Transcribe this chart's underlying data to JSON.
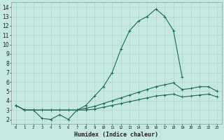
{
  "xlabel": "Humidex (Indice chaleur)",
  "background_color": "#c5e8e0",
  "grid_color": "#afd4cc",
  "line_color": "#1a6b5a",
  "xlim": [
    -0.5,
    23.5
  ],
  "ylim": [
    1.5,
    14.5
  ],
  "xticks": [
    0,
    1,
    2,
    3,
    4,
    5,
    6,
    7,
    8,
    9,
    10,
    11,
    12,
    13,
    14,
    15,
    16,
    17,
    18,
    19,
    20,
    21,
    22,
    23
  ],
  "yticks": [
    2,
    3,
    4,
    5,
    6,
    7,
    8,
    9,
    10,
    11,
    12,
    13,
    14
  ],
  "line1_x": [
    0,
    1,
    2,
    3,
    4,
    5,
    6,
    7,
    8,
    9,
    10,
    11,
    12,
    13,
    14,
    15,
    16,
    17,
    18,
    19
  ],
  "line1_y": [
    3.5,
    3.0,
    3.0,
    2.1,
    2.0,
    2.5,
    2.0,
    3.0,
    3.5,
    4.5,
    5.5,
    7.0,
    9.5,
    11.5,
    12.5,
    13.0,
    13.8,
    13.0,
    11.5,
    6.5
  ],
  "line2_x": [
    0,
    1,
    2,
    3,
    4,
    5,
    6,
    7,
    8,
    9,
    10,
    11,
    12,
    13,
    14,
    15,
    16,
    17,
    18,
    19,
    20,
    21,
    22,
    23
  ],
  "line2_y": [
    3.5,
    3.0,
    3.0,
    3.0,
    3.0,
    3.0,
    3.0,
    3.0,
    3.2,
    3.4,
    3.7,
    4.0,
    4.3,
    4.6,
    4.9,
    5.2,
    5.5,
    5.7,
    5.9,
    5.2,
    5.3,
    5.5,
    5.5,
    5.0
  ],
  "line3_x": [
    0,
    1,
    2,
    3,
    4,
    5,
    6,
    7,
    8,
    9,
    10,
    11,
    12,
    13,
    14,
    15,
    16,
    17,
    18,
    19,
    20,
    21,
    22,
    23
  ],
  "line3_y": [
    3.5,
    3.0,
    3.0,
    3.0,
    3.0,
    3.0,
    3.0,
    3.0,
    3.0,
    3.1,
    3.3,
    3.5,
    3.7,
    3.9,
    4.1,
    4.3,
    4.5,
    4.6,
    4.7,
    4.4,
    4.5,
    4.6,
    4.7,
    4.4
  ]
}
